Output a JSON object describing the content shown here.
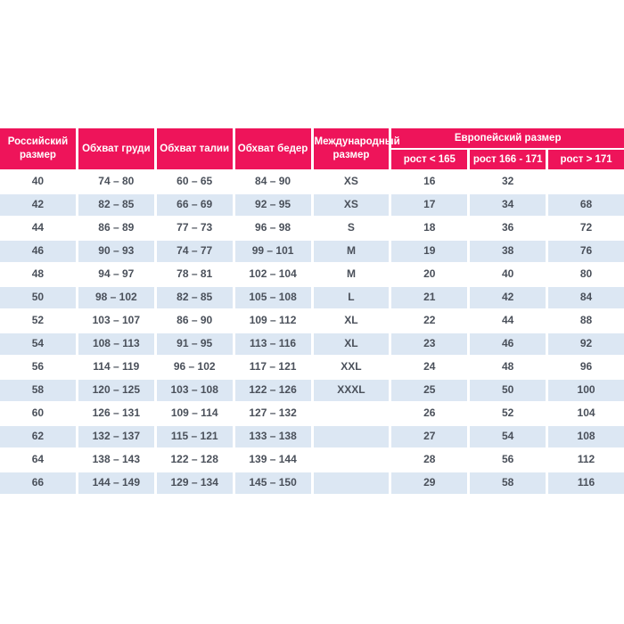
{
  "colors": {
    "header_bg": "#EE145A",
    "header_text": "#FFFFFF",
    "row_alt_bg": "#DCE7F3",
    "row_bg": "#FFFFFF",
    "body_text": "#4A505A"
  },
  "chart_data": {
    "type": "table",
    "header": {
      "russian_size": "Российский размер",
      "chest": "Обхват груди",
      "waist": "Обхват талии",
      "hips": "Обхват бедер",
      "international": "Международный размер",
      "european": "Европейский размер",
      "european_subcolumns": [
        "рост < 165",
        "рост 166 - 171",
        "рост > 171"
      ]
    },
    "rows": [
      [
        "40",
        "74 – 80",
        "60 – 65",
        "84 – 90",
        "XS",
        "16",
        "32",
        ""
      ],
      [
        "42",
        "82 – 85",
        "66 – 69",
        "92 – 95",
        "XS",
        "17",
        "34",
        "68"
      ],
      [
        "44",
        "86 – 89",
        "77 – 73",
        "96 – 98",
        "S",
        "18",
        "36",
        "72"
      ],
      [
        "46",
        "90 – 93",
        "74 – 77",
        "99 – 101",
        "M",
        "19",
        "38",
        "76"
      ],
      [
        "48",
        "94 – 97",
        "78 – 81",
        "102 – 104",
        "M",
        "20",
        "40",
        "80"
      ],
      [
        "50",
        "98 – 102",
        "82 – 85",
        "105 – 108",
        "L",
        "21",
        "42",
        "84"
      ],
      [
        "52",
        "103 – 107",
        "86 – 90",
        "109 – 112",
        "XL",
        "22",
        "44",
        "88"
      ],
      [
        "54",
        "108 – 113",
        "91 – 95",
        "113 – 116",
        "XL",
        "23",
        "46",
        "92"
      ],
      [
        "56",
        "114 – 119",
        "96 – 102",
        "117 – 121",
        "XXL",
        "24",
        "48",
        "96"
      ],
      [
        "58",
        "120 – 125",
        "103 – 108",
        "122 – 126",
        "XXXL",
        "25",
        "50",
        "100"
      ],
      [
        "60",
        "126 – 131",
        "109 – 114",
        "127 – 132",
        "",
        "26",
        "52",
        "104"
      ],
      [
        "62",
        "132 – 137",
        "115 – 121",
        "133 – 138",
        "",
        "27",
        "54",
        "108"
      ],
      [
        "64",
        "138 – 143",
        "122 – 128",
        "139 – 144",
        "",
        "28",
        "56",
        "112"
      ],
      [
        "66",
        "144 – 149",
        "129 – 134",
        "145 – 150",
        "",
        "29",
        "58",
        "116"
      ]
    ]
  }
}
